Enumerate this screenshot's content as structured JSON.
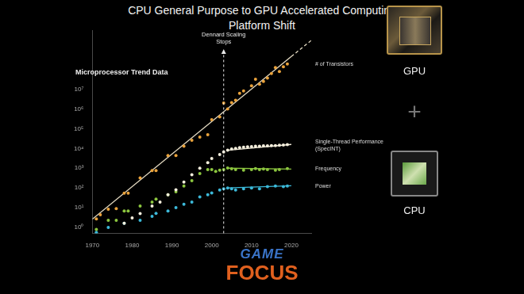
{
  "title": "CPU General Purpose to GPU Accelerated Computing Platform Shift",
  "platform": [
    "GPU",
    "+",
    "CPU"
  ],
  "watermark": [
    "GAME",
    "FOCUS"
  ],
  "chart_data": {
    "type": "scatter",
    "subtitle": "Microprocessor Trend Data",
    "log": "y",
    "grid": false,
    "xlim": [
      1970,
      2025
    ],
    "xticks": [
      1970,
      1980,
      1990,
      2000,
      2010,
      2020
    ],
    "ylim": [
      0.5,
      10000000000
    ],
    "yticks": [
      {
        "value": 1,
        "label": "10⁰"
      },
      {
        "value": 10,
        "label": "10¹"
      },
      {
        "value": 100,
        "label": "10²"
      },
      {
        "value": 1000,
        "label": "10³"
      },
      {
        "value": 10000,
        "label": "10⁴"
      },
      {
        "value": 100000,
        "label": "10⁵"
      },
      {
        "value": 1000000,
        "label": "10⁶"
      },
      {
        "value": 10000000,
        "label": "10⁷"
      }
    ],
    "annotations": [
      {
        "text": "Dennard Scaling Stops",
        "x": 2003
      }
    ],
    "series": [
      {
        "name": "# of Transistors",
        "color": "#e9a23b",
        "marker": "circle",
        "x": [
          1971,
          1972,
          1974,
          1976,
          1978,
          1979,
          1982,
          1985,
          1986,
          1989,
          1991,
          1993,
          1995,
          1997,
          1999,
          2000,
          2002,
          2003,
          2004,
          2005,
          2006,
          2007,
          2008,
          2010,
          2011,
          2012,
          2013,
          2014,
          2015,
          2016,
          2017,
          2018,
          2019
        ],
        "values": [
          2.7,
          4.4,
          8.3,
          9,
          54,
          54,
          320,
          760,
          760,
          4400,
          4400,
          13000,
          26000,
          38000,
          50000,
          290000,
          400000,
          2000000,
          1000000,
          2100000,
          2800000,
          6300000,
          8300000,
          15000000,
          32000000,
          18000000,
          25000000,
          37000000,
          63000000,
          126000000,
          80000000,
          140000000,
          190000000
        ]
      },
      {
        "name": "Single-Thread Performance (SpecINT)",
        "color": "#f4eedc",
        "marker": "circle",
        "x": [
          1978,
          1980,
          1982,
          1985,
          1987,
          1989,
          1991,
          1993,
          1995,
          1997,
          1999,
          2000,
          2002,
          2003,
          2004,
          2005,
          2006,
          2007,
          2008,
          2009,
          2010,
          2011,
          2012,
          2013,
          2014,
          2015,
          2016,
          2017,
          2018,
          2019
        ],
        "values": [
          1.6,
          3,
          5,
          12,
          19,
          45,
          80,
          200,
          470,
          1000,
          1900,
          3100,
          4900,
          6600,
          8100,
          9500,
          10000,
          11000,
          11500,
          12000,
          12500,
          13000,
          13000,
          13500,
          13500,
          14000,
          14000,
          14500,
          15000,
          15500
        ]
      },
      {
        "name": "Frequency",
        "color": "#8cc63f",
        "marker": "circle",
        "x": [
          1971,
          1974,
          1976,
          1978,
          1979,
          1982,
          1985,
          1986,
          1989,
          1991,
          1993,
          1995,
          1997,
          1999,
          2000,
          2001,
          2002,
          2003,
          2004,
          2005,
          2006,
          2008,
          2010,
          2011,
          2012,
          2013,
          2014,
          2016,
          2017,
          2019
        ],
        "values": [
          0.78,
          2.3,
          2.3,
          6.7,
          6.7,
          12,
          19,
          27,
          45,
          63,
          126,
          230,
          530,
          850,
          850,
          690,
          790,
          850,
          1020,
          930,
          850,
          790,
          850,
          950,
          850,
          910,
          850,
          790,
          850,
          950
        ]
      },
      {
        "name": "Power",
        "color": "#3cb9d9",
        "marker": "circle",
        "x": [
          1971,
          1974,
          1978,
          1982,
          1985,
          1986,
          1989,
          1991,
          1993,
          1995,
          1997,
          1999,
          2000,
          2002,
          2003,
          2004,
          2005,
          2006,
          2008,
          2010,
          2012,
          2014,
          2016,
          2018,
          2019
        ],
        "values": [
          0.55,
          1,
          1.6,
          2.3,
          3.6,
          5.1,
          6.7,
          10,
          15,
          19,
          35,
          45,
          55,
          78,
          90,
          100,
          90,
          78,
          90,
          100,
          90,
          115,
          126,
          115,
          126
        ]
      }
    ],
    "lines": [
      {
        "x": [
          1970,
          2020
        ],
        "values": [
          2.6,
          460000000
        ],
        "color": "#e6dcc4",
        "line_style": "solid"
      },
      {
        "x": [
          2020,
          2025
        ],
        "values": [
          460000000,
          3000000000
        ],
        "color": "#e6dcc4",
        "line_style": "dashed"
      },
      {
        "x": [
          2004,
          2020
        ],
        "values": [
          8100,
          16000
        ],
        "color": "#f4eedc",
        "line_style": "solid"
      },
      {
        "x": [
          2004,
          2020
        ],
        "values": [
          1000,
          900
        ],
        "color": "#8cc63f",
        "line_style": "solid"
      },
      {
        "x": [
          2004,
          2020
        ],
        "values": [
          100,
          130
        ],
        "color": "#3cb9d9",
        "line_style": "solid"
      }
    ]
  }
}
